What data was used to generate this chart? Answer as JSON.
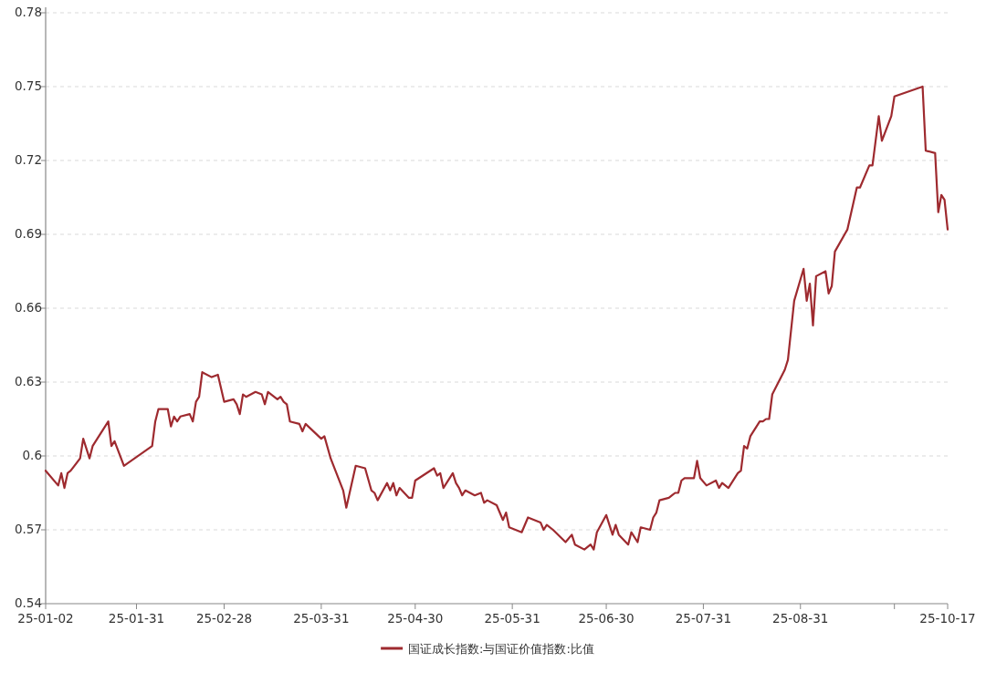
{
  "chart_data": {
    "type": "line",
    "legend": "bottom",
    "grid": "y",
    "ylim": [
      0.54,
      0.78
    ],
    "yticks": [
      0.54,
      0.57,
      0.6,
      0.63,
      0.66,
      0.69,
      0.72,
      0.75,
      0.78
    ],
    "xlim": [
      "--01-02",
      "--10-17"
    ],
    "xticks": [
      {
        "value": "--01-02",
        "label": "25-01-02"
      },
      {
        "value": "--01-31",
        "label": "25-01-31"
      },
      {
        "value": "--02-28",
        "label": "25-02-28"
      },
      {
        "value": "--03-31",
        "label": "25-03-31"
      },
      {
        "value": "--04-30",
        "label": "25-04-30"
      },
      {
        "value": "--05-31",
        "label": "25-05-31"
      },
      {
        "value": "--06-30",
        "label": "25-06-30"
      },
      {
        "value": "--07-31",
        "label": "25-07-31"
      },
      {
        "value": "--08-31",
        "label": "25-08-31"
      },
      {
        "value": "--09-30",
        "label": null
      },
      {
        "value": "--10-17",
        "label": "25-10-17"
      }
    ],
    "x": [
      "--01-02",
      "--01-06",
      "--01-07",
      "--01-08",
      "--01-09",
      "--01-10",
      "--01-13",
      "--01-14",
      "--01-16",
      "--01-17",
      "--01-22",
      "--01-23",
      "--01-24",
      "--01-27",
      "--02-05",
      "--02-06",
      "--02-07",
      "--02-10",
      "--02-11",
      "--02-12",
      "--02-13",
      "--02-14",
      "--02-17",
      "--02-18",
      "--02-19",
      "--02-20",
      "--02-21",
      "--02-24",
      "--02-26",
      "--02-28",
      "--03-03",
      "--03-04",
      "--03-05",
      "--03-06",
      "--03-07",
      "--03-10",
      "--03-12",
      "--03-13",
      "--03-14",
      "--03-17",
      "--03-18",
      "--03-19",
      "--03-20",
      "--03-21",
      "--03-24",
      "--03-25",
      "--03-26",
      "--03-31",
      "--04-01",
      "--04-03",
      "--04-07",
      "--04-08",
      "--04-11",
      "--04-14",
      "--04-16",
      "--04-17",
      "--04-18",
      "--04-21",
      "--04-22",
      "--04-23",
      "--04-24",
      "--04-25",
      "--04-28",
      "--04-29",
      "--04-30",
      "--05-06",
      "--05-07",
      "--05-08",
      "--05-09",
      "--05-12",
      "--05-13",
      "--05-14",
      "--05-15",
      "--05-16",
      "--05-19",
      "--05-21",
      "--05-22",
      "--05-23",
      "--05-26",
      "--05-28",
      "--05-29",
      "--05-30",
      "--06-03",
      "--06-05",
      "--06-09",
      "--06-10",
      "--06-11",
      "--06-13",
      "--06-17",
      "--06-19",
      "--06-20",
      "--06-23",
      "--06-25",
      "--06-26",
      "--06-27",
      "--06-30",
      "--07-02",
      "--07-03",
      "--07-04",
      "--07-07",
      "--07-08",
      "--07-10",
      "--07-11",
      "--07-14",
      "--07-15",
      "--07-16",
      "--07-17",
      "--07-20",
      "--07-21",
      "--07-22",
      "--07-23",
      "--07-24",
      "--07-25",
      "--07-28",
      "--07-29",
      "--07-30",
      "--08-01",
      "--08-04",
      "--08-05",
      "--08-06",
      "--08-08",
      "--08-11",
      "--08-12",
      "--08-13",
      "--08-14",
      "--08-15",
      "--08-18",
      "--08-19",
      "--08-20",
      "--08-21",
      "--08-22",
      "--08-26",
      "--08-27",
      "--08-29",
      "--09-01",
      "--09-02",
      "--09-03",
      "--09-04",
      "--09-05",
      "--09-08",
      "--09-09",
      "--09-10",
      "--09-11",
      "--09-15",
      "--09-18",
      "--09-19",
      "--09-22",
      "--09-23",
      "--09-25",
      "--09-26",
      "--09-29",
      "--09-30",
      "--10-09",
      "--10-10",
      "--10-13",
      "--10-14",
      "--10-15",
      "--10-16",
      "--10-17"
    ],
    "series": [
      {
        "name": "国证成长指数:与国证价值指数:比值",
        "color": "#9e2a2f",
        "values": [
          0.594,
          0.588,
          0.593,
          0.587,
          0.593,
          0.594,
          0.599,
          0.607,
          0.599,
          0.604,
          0.614,
          0.604,
          0.606,
          0.596,
          0.604,
          0.614,
          0.619,
          0.619,
          0.612,
          0.616,
          0.614,
          0.616,
          0.617,
          0.614,
          0.622,
          0.624,
          0.634,
          0.632,
          0.633,
          0.622,
          0.623,
          0.621,
          0.617,
          0.625,
          0.624,
          0.626,
          0.625,
          0.621,
          0.626,
          0.623,
          0.624,
          0.622,
          0.621,
          0.614,
          0.613,
          0.61,
          0.613,
          0.607,
          0.608,
          0.599,
          0.586,
          0.579,
          0.596,
          0.595,
          0.586,
          0.585,
          0.582,
          0.589,
          0.586,
          0.589,
          0.584,
          0.587,
          0.583,
          0.583,
          0.59,
          0.595,
          0.592,
          0.593,
          0.587,
          0.593,
          0.589,
          0.587,
          0.584,
          0.586,
          0.584,
          0.585,
          0.581,
          0.582,
          0.58,
          0.574,
          0.577,
          0.571,
          0.569,
          0.575,
          0.573,
          0.57,
          0.572,
          0.57,
          0.565,
          0.568,
          0.564,
          0.562,
          0.564,
          0.562,
          0.569,
          0.576,
          0.568,
          0.572,
          0.568,
          0.564,
          0.569,
          0.565,
          0.571,
          0.57,
          0.575,
          0.577,
          0.582,
          0.583,
          0.584,
          0.585,
          0.585,
          0.59,
          0.591,
          0.591,
          0.598,
          0.591,
          0.588,
          0.59,
          0.587,
          0.589,
          0.587,
          0.593,
          0.594,
          0.604,
          0.603,
          0.608,
          0.614,
          0.614,
          0.615,
          0.615,
          0.625,
          0.635,
          0.639,
          0.663,
          0.676,
          0.663,
          0.67,
          0.653,
          0.673,
          0.675,
          0.666,
          0.669,
          0.683,
          0.692,
          0.709,
          0.709,
          0.718,
          0.718,
          0.738,
          0.728,
          0.738,
          0.746,
          0.75,
          0.724,
          0.723,
          0.699,
          0.706,
          0.704,
          0.692
        ]
      }
    ]
  }
}
